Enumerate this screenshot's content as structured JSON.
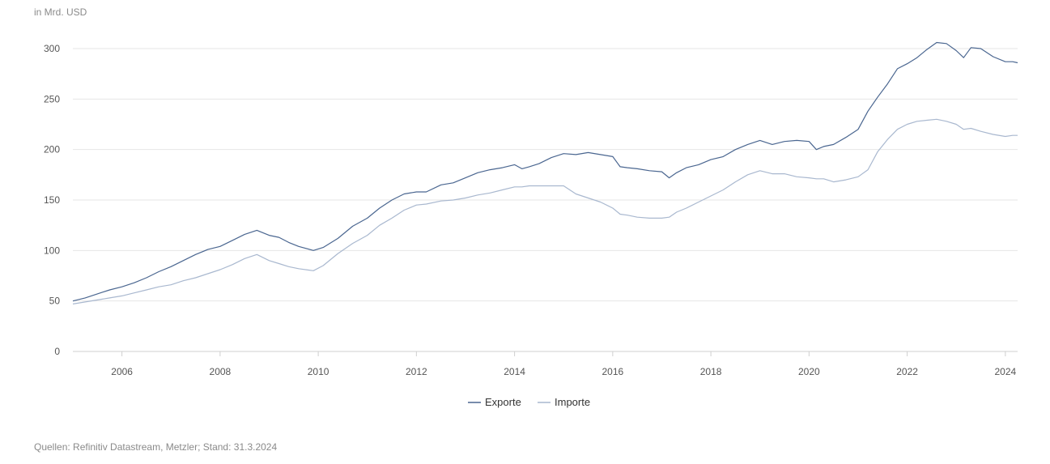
{
  "header": {
    "unit_label": "in Mrd. USD"
  },
  "footer": {
    "source": "Quellen: Refinitiv Datastream, Metzler; Stand: 31.3.2024"
  },
  "chart_data": {
    "type": "line",
    "title": "",
    "xlabel": "",
    "ylabel": "in Mrd. USD",
    "xlim": [
      2005.0,
      2024.25
    ],
    "ylim": [
      0,
      300
    ],
    "grid": true,
    "legend_position": "bottom-center",
    "y_ticks": [
      0,
      50,
      100,
      150,
      200,
      250,
      300
    ],
    "x_ticks": [
      2006,
      2008,
      2010,
      2012,
      2014,
      2016,
      2018,
      2020,
      2022,
      2024
    ],
    "colors": {
      "Exporte": "#4a6690",
      "Importe": "#a9b8cf",
      "grid": "#e6e6e6",
      "text": "#555555"
    },
    "series": [
      {
        "name": "Exporte",
        "x": [
          2005.0,
          2005.25,
          2005.5,
          2005.75,
          2006.0,
          2006.25,
          2006.5,
          2006.75,
          2007.0,
          2007.25,
          2007.5,
          2007.75,
          2008.0,
          2008.25,
          2008.5,
          2008.75,
          2009.0,
          2009.2,
          2009.4,
          2009.6,
          2009.9,
          2010.1,
          2010.4,
          2010.7,
          2011.0,
          2011.25,
          2011.5,
          2011.75,
          2012.0,
          2012.2,
          2012.5,
          2012.75,
          2013.0,
          2013.25,
          2013.5,
          2013.75,
          2014.0,
          2014.15,
          2014.3,
          2014.5,
          2014.75,
          2015.0,
          2015.25,
          2015.5,
          2015.75,
          2016.0,
          2016.15,
          2016.3,
          2016.5,
          2016.75,
          2017.0,
          2017.15,
          2017.3,
          2017.5,
          2017.75,
          2018.0,
          2018.25,
          2018.5,
          2018.75,
          2019.0,
          2019.25,
          2019.5,
          2019.75,
          2020.0,
          2020.15,
          2020.3,
          2020.5,
          2020.75,
          2021.0,
          2021.2,
          2021.4,
          2021.6,
          2021.8,
          2022.0,
          2022.2,
          2022.4,
          2022.6,
          2022.8,
          2023.0,
          2023.15,
          2023.3,
          2023.5,
          2023.75,
          2024.0,
          2024.15,
          2024.25
        ],
        "values": [
          50,
          53,
          57,
          61,
          64,
          68,
          73,
          79,
          84,
          90,
          96,
          101,
          104,
          110,
          116,
          120,
          115,
          113,
          108,
          104,
          100,
          103,
          112,
          124,
          132,
          142,
          150,
          156,
          158,
          158,
          165,
          167,
          172,
          177,
          180,
          182,
          185,
          181,
          183,
          186,
          192,
          196,
          195,
          197,
          195,
          193,
          183,
          182,
          181,
          179,
          178,
          172,
          177,
          182,
          185,
          190,
          193,
          200,
          205,
          209,
          205,
          208,
          209,
          208,
          200,
          203,
          205,
          212,
          220,
          238,
          252,
          265,
          280,
          285,
          291,
          299,
          306,
          305,
          298,
          291,
          301,
          300,
          292,
          287,
          287,
          286
        ]
      },
      {
        "name": "Importe",
        "x": [
          2005.0,
          2005.25,
          2005.5,
          2005.75,
          2006.0,
          2006.25,
          2006.5,
          2006.75,
          2007.0,
          2007.25,
          2007.5,
          2007.75,
          2008.0,
          2008.25,
          2008.5,
          2008.75,
          2009.0,
          2009.2,
          2009.4,
          2009.6,
          2009.9,
          2010.1,
          2010.4,
          2010.7,
          2011.0,
          2011.25,
          2011.5,
          2011.75,
          2012.0,
          2012.2,
          2012.5,
          2012.75,
          2013.0,
          2013.25,
          2013.5,
          2013.75,
          2014.0,
          2014.15,
          2014.3,
          2014.5,
          2014.75,
          2015.0,
          2015.25,
          2015.5,
          2015.75,
          2016.0,
          2016.15,
          2016.3,
          2016.5,
          2016.75,
          2017.0,
          2017.15,
          2017.3,
          2017.5,
          2017.75,
          2018.0,
          2018.25,
          2018.5,
          2018.75,
          2019.0,
          2019.25,
          2019.5,
          2019.75,
          2020.0,
          2020.15,
          2020.3,
          2020.5,
          2020.75,
          2021.0,
          2021.2,
          2021.4,
          2021.6,
          2021.8,
          2022.0,
          2022.2,
          2022.4,
          2022.6,
          2022.8,
          2023.0,
          2023.15,
          2023.3,
          2023.5,
          2023.75,
          2024.0,
          2024.15,
          2024.25
        ],
        "values": [
          47,
          49,
          51,
          53,
          55,
          58,
          61,
          64,
          66,
          70,
          73,
          77,
          81,
          86,
          92,
          96,
          90,
          87,
          84,
          82,
          80,
          85,
          97,
          107,
          115,
          125,
          132,
          140,
          145,
          146,
          149,
          150,
          152,
          155,
          157,
          160,
          163,
          163,
          164,
          164,
          164,
          164,
          156,
          152,
          148,
          142,
          136,
          135,
          133,
          132,
          132,
          133,
          138,
          142,
          148,
          154,
          160,
          168,
          175,
          179,
          176,
          176,
          173,
          172,
          171,
          171,
          168,
          170,
          173,
          180,
          198,
          210,
          220,
          225,
          228,
          229,
          230,
          228,
          225,
          220,
          221,
          218,
          215,
          213,
          214,
          214
        ]
      }
    ]
  }
}
